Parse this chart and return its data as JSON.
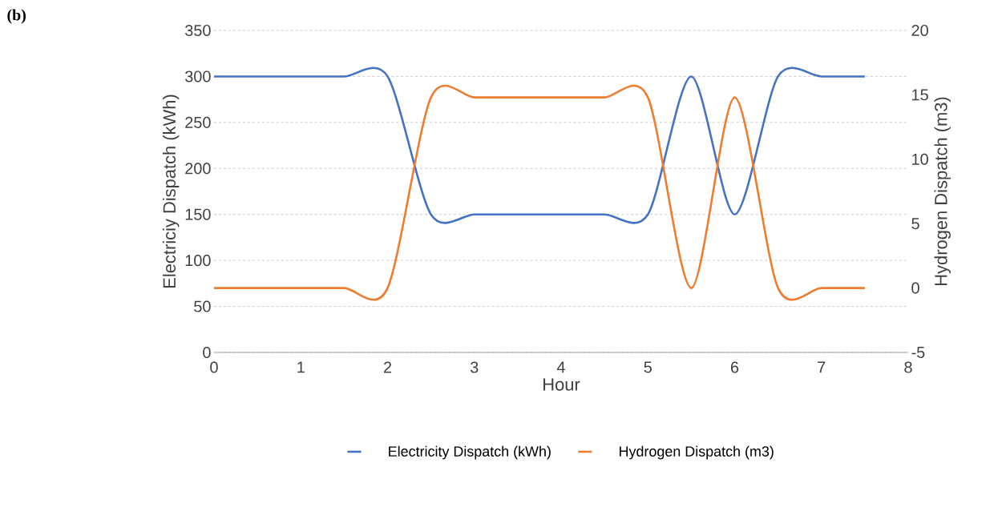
{
  "chart_data": {
    "type": "line",
    "xlabel": "Hour",
    "ylabel": "Electriciy Dispatch (kWh)",
    "y2label": "Hydrogen Dispatch (m3)",
    "x": [
      0,
      0.5,
      1,
      1.5,
      2,
      2.5,
      3,
      3.5,
      4,
      4.5,
      5,
      5.5,
      6,
      6.5,
      7,
      7.5
    ],
    "series": [
      {
        "name": "Electricity Dispatch (kWh)",
        "color": "#4472c4",
        "values": [
          300,
          300,
          300,
          300,
          300,
          150,
          150,
          150,
          150,
          150,
          150,
          300,
          150,
          300,
          300,
          300
        ]
      },
      {
        "name": "Hydrogen Dispatch (m3)",
        "color": "#ed7d31",
        "axis": "y2",
        "values": [
          0,
          0,
          0,
          0,
          0,
          14.8,
          14.8,
          14.8,
          14.8,
          14.8,
          14.8,
          0,
          14.8,
          0,
          0,
          0
        ]
      }
    ],
    "xlim": [
      0,
      8
    ],
    "xticks": [
      0,
      1,
      2,
      3,
      4,
      5,
      6,
      7,
      8
    ],
    "ylim": [
      0,
      350
    ],
    "yticks": [
      0,
      50,
      100,
      150,
      200,
      250,
      300,
      350
    ],
    "y2lim": [
      -5,
      20
    ],
    "y2ticks": [
      -5,
      0,
      5,
      10,
      15,
      20
    ],
    "grid": "y",
    "legend": "bottom",
    "annotations": [
      "(b)"
    ]
  }
}
